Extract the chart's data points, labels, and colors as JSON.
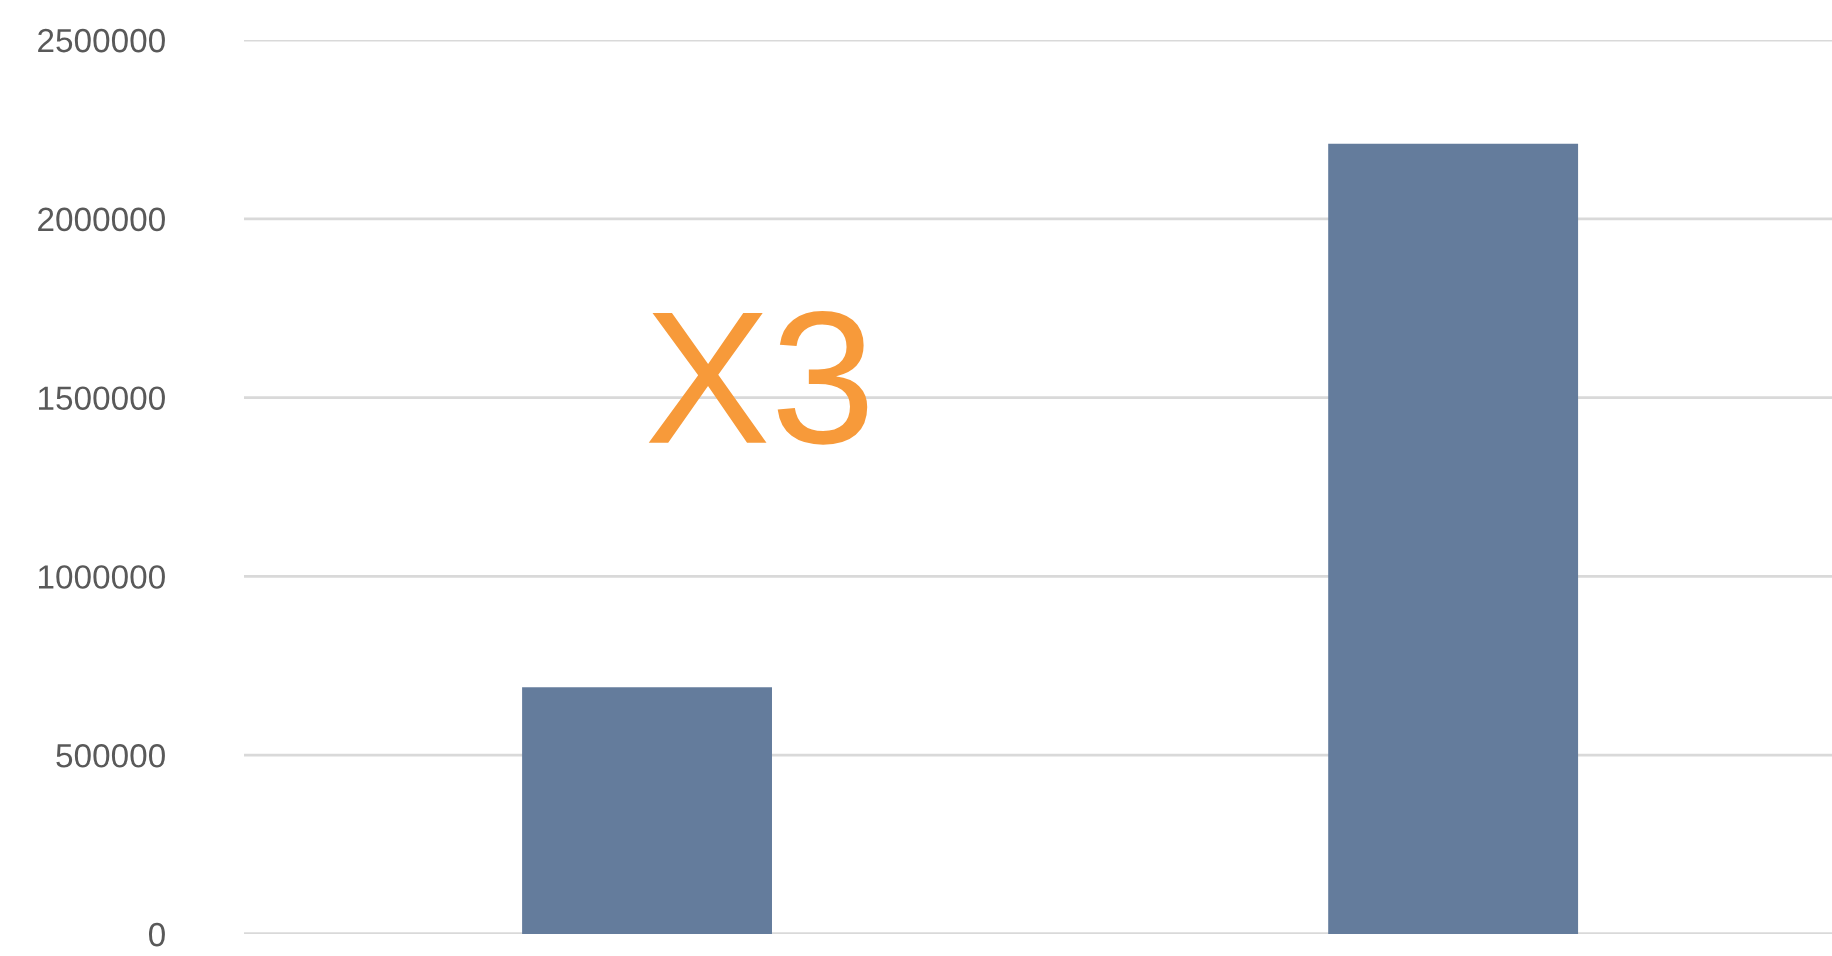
{
  "chart_data": {
    "type": "bar",
    "categories": [
      null,
      null
    ],
    "values": [
      690000,
      2210000
    ],
    "color": "#647c9c",
    "ylim": [
      0,
      2500000
    ],
    "yticks": [
      0,
      500000,
      1000000,
      1500000,
      2000000,
      2500000
    ],
    "grid": "y",
    "tick_labels": "y",
    "annotations": [
      "X3"
    ]
  }
}
